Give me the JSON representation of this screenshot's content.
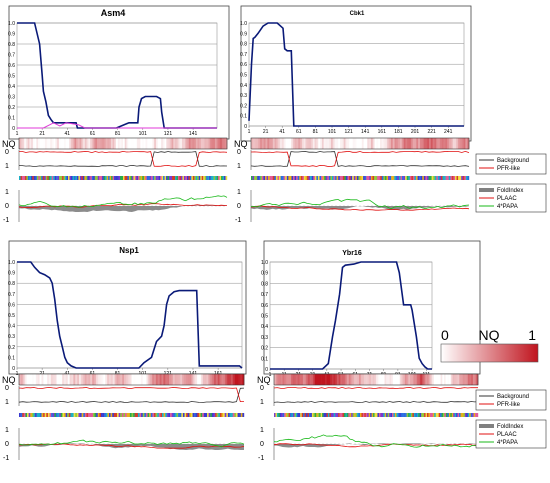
{
  "figure": {
    "nq_label": "NQ",
    "scale": {
      "min_label": "0",
      "label": "NQ",
      "max_label": "1"
    },
    "legend_top": [
      "Background",
      "PFR-like"
    ],
    "legend_bottom": [
      "FoldIndex",
      "PLAAC",
      "4*PAPA"
    ],
    "colors": {
      "series_main": "#0a1a78",
      "series_pink": "#e03ad8",
      "background_line": "#333333",
      "pfr_line": "#e01010",
      "foldindex": "#808080",
      "plaac": "#e01010",
      "papa": "#19b919",
      "heat_high": "#c0141e",
      "heat_low": "#ffffff"
    }
  },
  "chart_data": [
    {
      "type": "line",
      "title": "Asm4",
      "ylim": [
        0,
        1.0
      ],
      "yticks": [
        "0",
        "0.1",
        "0.2",
        "0.3",
        "0.4",
        "0.5",
        "0.6",
        "0.7",
        "0.8",
        "0.9",
        "1.0"
      ],
      "xticks": [
        "1",
        "21",
        "41",
        "61",
        "81",
        "101",
        "121",
        "141"
      ],
      "xmax": 160,
      "series": [
        {
          "x": [
            1,
            7,
            13,
            15,
            17,
            19,
            20,
            21,
            22,
            24,
            26,
            28,
            30,
            40,
            48,
            49,
            55,
            62,
            68,
            75,
            80,
            90,
            97,
            98,
            100,
            103,
            107,
            110,
            112,
            115,
            116,
            118,
            160
          ],
          "y": [
            1,
            1,
            1,
            1,
            0.9,
            0.8,
            0.65,
            0.5,
            0.35,
            0.25,
            0.12,
            0.08,
            0.05,
            0.05,
            0.05,
            0,
            0,
            0,
            0,
            0,
            0,
            0.05,
            0.05,
            0.2,
            0.28,
            0.3,
            0.3,
            0.3,
            0.3,
            0.28,
            0.15,
            0,
            0
          ]
        },
        {
          "x": [
            1,
            22,
            27,
            30,
            35,
            40,
            45,
            50,
            55,
            60,
            160
          ],
          "y": [
            0,
            0,
            0.03,
            0.05,
            0.02,
            0.05,
            0.04,
            0.03,
            0,
            0,
            0
          ]
        }
      ]
    },
    {
      "type": "line",
      "title": "Cbk1",
      "ylim": [
        0,
        1.0
      ],
      "yticks": [
        "0",
        "0.1",
        "0.2",
        "0.3",
        "0.4",
        "0.5",
        "0.6",
        "0.7",
        "0.8",
        "0.9",
        "1.0"
      ],
      "xticks": [
        "1",
        "21",
        "41",
        "61",
        "81",
        "101",
        "121",
        "141",
        "161",
        "181",
        "201",
        "221",
        "241"
      ],
      "xmax": 260,
      "series": [
        {
          "x": [
            1,
            4,
            6,
            8,
            12,
            18,
            24,
            28,
            35,
            42,
            44,
            47,
            50,
            52,
            55,
            260
          ],
          "y": [
            0.05,
            0.6,
            0.85,
            0.86,
            0.9,
            0.97,
            1,
            1,
            1,
            0.95,
            0.75,
            0.73,
            0.73,
            0.73,
            0,
            0
          ]
        }
      ]
    },
    {
      "type": "line",
      "title": "Nsp1",
      "ylim": [
        0,
        1.0
      ],
      "yticks": [
        "0",
        "0.1",
        "0.2",
        "0.3",
        "0.4",
        "0.5",
        "0.6",
        "0.7",
        "0.8",
        "0.9",
        "1.0"
      ],
      "xticks": [
        "1",
        "21",
        "41",
        "61",
        "81",
        "101",
        "121",
        "141",
        "161"
      ],
      "xmax": 180,
      "series": [
        {
          "x": [
            1,
            5,
            12,
            15,
            19,
            23,
            27,
            29,
            31,
            33,
            35,
            37,
            39,
            41,
            44,
            48,
            50,
            60,
            70,
            80,
            90,
            98,
            102,
            108,
            112,
            116,
            118,
            120,
            122,
            126,
            130,
            135,
            138,
            140,
            142,
            144,
            146,
            170,
            178,
            180
          ],
          "y": [
            1,
            1,
            1,
            0.95,
            0.9,
            0.88,
            0.85,
            0.8,
            0.65,
            0.45,
            0.3,
            0.2,
            0.1,
            0.05,
            0.02,
            0,
            0,
            0,
            0,
            0,
            0,
            0,
            0.05,
            0.1,
            0.25,
            0.3,
            0.4,
            0.6,
            0.68,
            0.72,
            0.73,
            0.73,
            0.73,
            0.73,
            0.73,
            0.73,
            0.02,
            0.02,
            0.02,
            0
          ]
        }
      ]
    },
    {
      "type": "line",
      "title": "Ybr16",
      "ylim": [
        0,
        1.0
      ],
      "yticks": [
        "0",
        "0.1",
        "0.2",
        "0.3",
        "0.4",
        "0.5",
        "0.6",
        "0.7",
        "0.8",
        "0.9",
        "1.0"
      ],
      "xticks": [
        "1",
        "11",
        "21",
        "31",
        "41",
        "51",
        "61",
        "71",
        "81",
        "91",
        "101",
        "111"
      ],
      "xmax": 115,
      "series": [
        {
          "x": [
            1,
            20,
            30,
            38,
            42,
            45,
            47,
            50,
            52,
            54,
            60,
            65,
            70,
            80,
            90,
            92,
            95,
            100,
            101,
            104,
            106,
            108,
            110,
            112,
            115
          ],
          "y": [
            0,
            0,
            0,
            0,
            0.05,
            0.3,
            0.45,
            0.7,
            0.95,
            0.97,
            0.98,
            1,
            1,
            1,
            1,
            0.9,
            0.6,
            0.6,
            0.55,
            0.3,
            0.1,
            0.05,
            0.02,
            0,
            0
          ]
        }
      ]
    }
  ]
}
